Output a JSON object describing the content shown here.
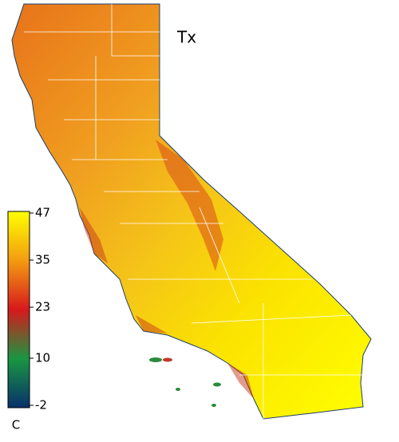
{
  "title": "Tx",
  "colorbar": {
    "label": "C",
    "lim": [
      -2,
      47
    ],
    "ticks": [
      -2,
      10,
      23,
      35,
      47
    ],
    "colors": [
      "#08306b",
      "#1a9641",
      "#d7191c",
      "#f39c12",
      "#ffff00"
    ]
  }
}
